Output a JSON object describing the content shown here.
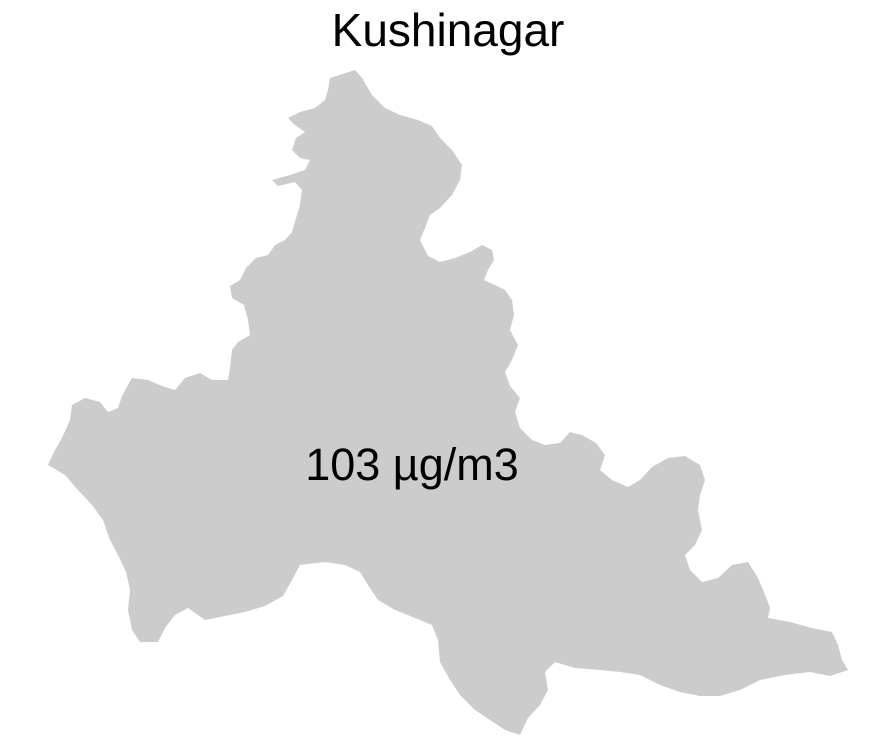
{
  "map": {
    "title": "Kushinagar",
    "region_name": "Kushinagar",
    "value_label": "103 µg/m3",
    "value": 103,
    "unit": "µg/m3",
    "fill_color": "#cccccc",
    "background_color": "#ffffff"
  }
}
